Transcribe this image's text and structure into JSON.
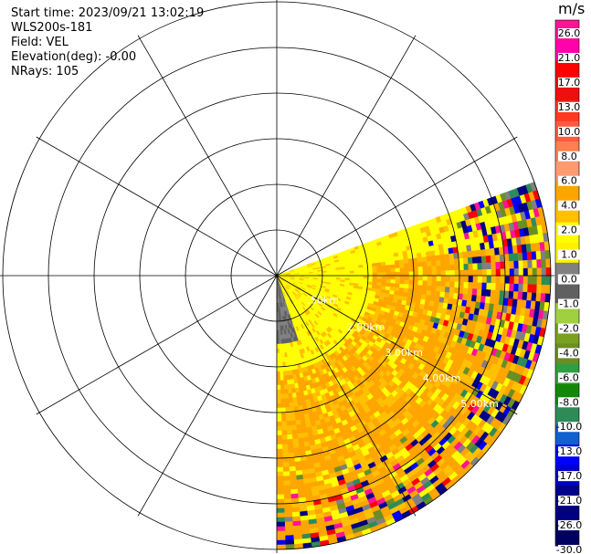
{
  "info": {
    "start_time": "Start time: 2023/09/21 13:02:19",
    "instrument": "WLS200s-181",
    "field": "Field: VEL",
    "elevation": "Elevation(deg): -0.00",
    "nrays": "NRays: 105"
  },
  "colorbar": {
    "unit": "m/s",
    "labels": [
      "26.0",
      "21.0",
      "17.0",
      "13.0",
      "10.0",
      "8.0",
      "6.0",
      "4.0",
      "2.0",
      "1.0",
      "0.0",
      "-1.0",
      "-2.0",
      "-4.0",
      "-6.0",
      "-8.0",
      "-10.0",
      "-13.0",
      "-17.0",
      "-21.0",
      "-26.0",
      "-30.0"
    ],
    "colors": [
      "#ff1493",
      "#ff00aa",
      "#ff0000",
      "#ee1010",
      "#ff3a20",
      "#ff5a40",
      "#ff7f50",
      "#ff9a70",
      "#ffa500",
      "#ffc000",
      "#ffff00",
      "#fff200",
      "#808080",
      "#606060",
      "#a0d040",
      "#7aa020",
      "#6b8e23",
      "#2ea043",
      "#138808",
      "#2e8b57",
      "#1060d0",
      "#0000ff",
      "#0000cc",
      "#00008b",
      "#000080",
      "#000060"
    ]
  },
  "range_labels": [
    ".50km",
    "2.00km",
    "3.00km",
    "4.00km",
    "5.00km"
  ],
  "ppi": {
    "azimuth_start_deg": 70,
    "azimuth_end_deg": 180,
    "max_range_km": 6.0,
    "ring_step_km": 1.0
  }
}
